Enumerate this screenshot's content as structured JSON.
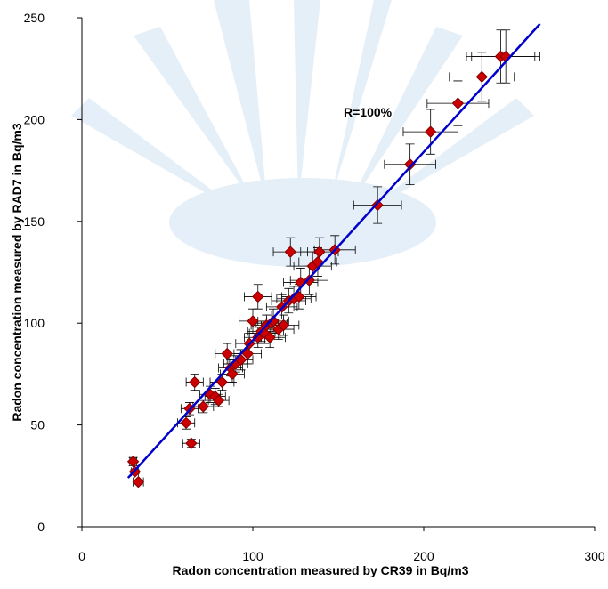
{
  "chart_data": {
    "type": "scatter",
    "x_label": "Radon concentration measured by CR39 in Bq/m3",
    "y_label": "Radon concentration measured by RAD7 in Bq/m3",
    "annotation": "R=100%",
    "xlim": [
      0,
      300
    ],
    "xticks": [
      0,
      100,
      200,
      300
    ],
    "ylim": [
      0,
      250
    ],
    "yticks": [
      0,
      50,
      100,
      150,
      200,
      250
    ],
    "series": [
      {
        "color": "#cc0000",
        "edge_color": "#800000",
        "x": [
          30,
          31,
          33,
          61,
          63,
          64,
          66,
          71,
          75,
          78,
          80,
          82,
          85,
          87,
          88,
          90,
          93,
          97,
          98,
          100,
          103,
          103,
          105,
          107,
          108,
          110,
          111,
          112,
          115,
          117,
          118,
          121,
          122,
          124,
          127,
          128,
          133,
          135,
          138,
          139,
          148,
          173,
          192,
          204,
          220,
          234,
          245,
          248
        ],
        "values": [
          32,
          27,
          22,
          51,
          58,
          41,
          71,
          59,
          65,
          64,
          62,
          71,
          85,
          78,
          75,
          80,
          82,
          85,
          90,
          101,
          113,
          93,
          96,
          95,
          99,
          93,
          100,
          101,
          97,
          108,
          99,
          111,
          135,
          112,
          113,
          120,
          121,
          128,
          130,
          135,
          136,
          158,
          178,
          194,
          208,
          221,
          231,
          231
        ],
        "xerr": [
          2,
          2,
          3,
          5,
          5,
          5,
          5,
          6,
          6,
          6,
          6,
          7,
          7,
          7,
          7,
          7,
          7,
          8,
          8,
          8,
          8,
          8,
          8,
          9,
          9,
          9,
          9,
          9,
          9,
          9,
          9,
          10,
          10,
          10,
          10,
          10,
          11,
          11,
          11,
          11,
          12,
          14,
          15,
          16,
          18,
          19,
          20,
          20
        ],
        "yerr": [
          2,
          1,
          1,
          3,
          3,
          2,
          4,
          3,
          4,
          4,
          3,
          4,
          5,
          4,
          4,
          4,
          5,
          5,
          5,
          6,
          6,
          5,
          5,
          5,
          5,
          5,
          6,
          6,
          5,
          6,
          5,
          6,
          7,
          6,
          6,
          7,
          7,
          7,
          7,
          7,
          7,
          9,
          10,
          11,
          11,
          12,
          13,
          13
        ]
      }
    ],
    "fit_line": {
      "color": "#0000cc",
      "x": [
        27,
        268
      ],
      "values": [
        24,
        247
      ]
    }
  }
}
